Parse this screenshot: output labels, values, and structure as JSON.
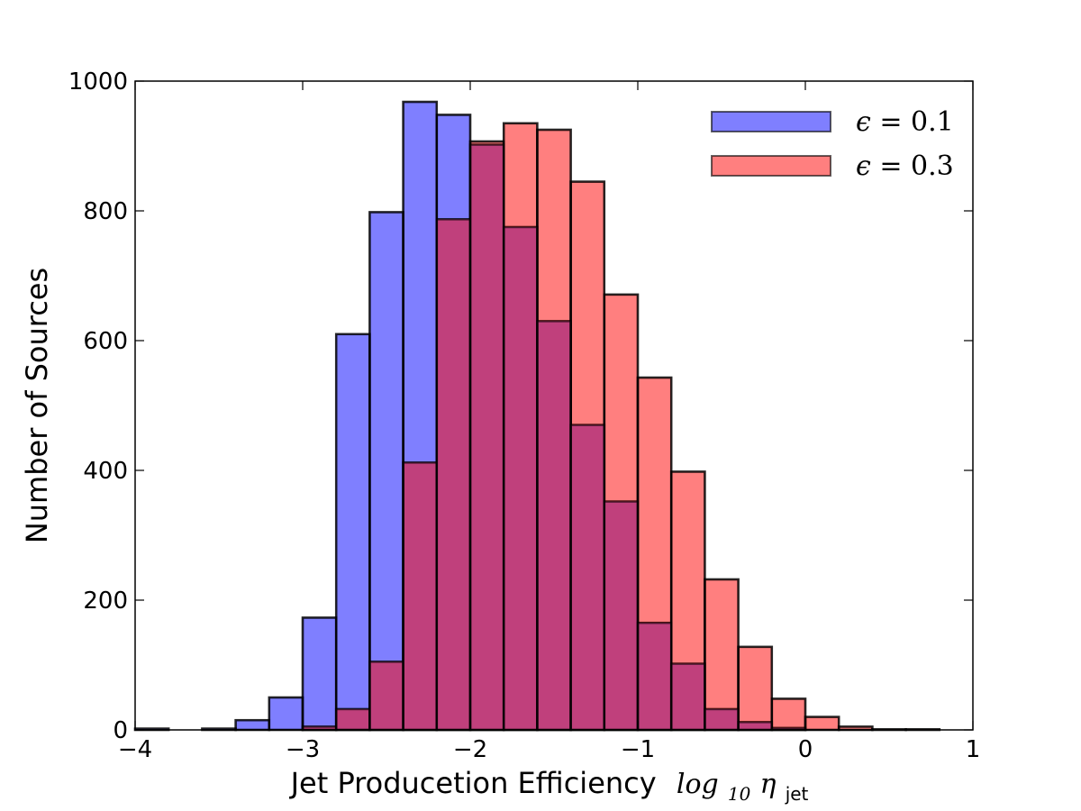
{
  "chart_data": {
    "type": "histogram",
    "xlabel": {
      "text": "Jet Producetion Efficiency",
      "math_prefix": "log",
      "math_sub": "10",
      "math_symbol": "η",
      "math_symbol_sub": "jet"
    },
    "ylabel": "Number of Sources",
    "xlim": [
      -4,
      1
    ],
    "ylim": [
      0,
      1000
    ],
    "xticks": [
      -4,
      -3,
      -2,
      -1,
      0,
      1
    ],
    "xtick_labels": [
      "−4",
      "−3",
      "−2",
      "−1",
      "0",
      "1"
    ],
    "yticks": [
      0,
      200,
      400,
      600,
      800,
      1000
    ],
    "ytick_labels": [
      "0",
      "200",
      "400",
      "600",
      "800",
      "1000"
    ],
    "bin_width": 0.2,
    "legend_position": "top-right",
    "series": [
      {
        "name": "ε = 0.1",
        "legend_symbol": "ϵ",
        "legend_rest": " = 0.1",
        "color": "#0000ff",
        "blend_color": "#c0407c",
        "bin_starts": [
          -4.0,
          -3.8,
          -3.6,
          -3.4,
          -3.2,
          -3.0,
          -2.8,
          -2.6,
          -2.4,
          -2.2,
          -2.0,
          -1.8,
          -1.6,
          -1.4,
          -1.2,
          -1.0,
          -0.8,
          -0.6,
          -0.4,
          -0.2,
          0.0,
          0.2,
          0.4,
          0.6
        ],
        "values": [
          2,
          0,
          2,
          15,
          50,
          173,
          610,
          798,
          968,
          948,
          902,
          775,
          630,
          470,
          352,
          165,
          102,
          32,
          12,
          3,
          0,
          0,
          0,
          0
        ]
      },
      {
        "name": "ε = 0.3",
        "legend_symbol": "ϵ",
        "legend_rest": " = 0.3",
        "color": "#ff0000",
        "bin_starts": [
          -4.0,
          -3.8,
          -3.6,
          -3.4,
          -3.2,
          -3.0,
          -2.8,
          -2.6,
          -2.4,
          -2.2,
          -2.0,
          -1.8,
          -1.6,
          -1.4,
          -1.2,
          -1.0,
          -0.8,
          -0.6,
          -0.4,
          -0.2,
          0.0,
          0.2,
          0.4,
          0.6
        ],
        "values": [
          0,
          0,
          0,
          0,
          0,
          5,
          32,
          105,
          412,
          787,
          907,
          935,
          925,
          845,
          671,
          543,
          398,
          232,
          128,
          48,
          20,
          5,
          1,
          1
        ]
      }
    ]
  }
}
